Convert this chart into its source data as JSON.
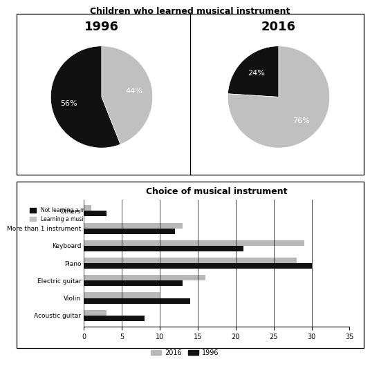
{
  "pie_title": "Children who learned musical instrument",
  "pie_1996": {
    "year": "1996",
    "not_learning": 56,
    "learning": 44
  },
  "pie_2016": {
    "year": "2016",
    "not_learning": 24,
    "learning": 76
  },
  "bar_title": "Choice of musical instrument",
  "categories": [
    "Acoustic guitar",
    "Violin",
    "Electric guitar",
    "Piano",
    "Keyboard",
    "More than 1 instrument",
    "Others"
  ],
  "values_1996": [
    8,
    14,
    13,
    30,
    21,
    12,
    3
  ],
  "values_2016": [
    3,
    10,
    16,
    28,
    29,
    13,
    1
  ],
  "color_1996": "#111111",
  "color_2016": "#b8b8b8",
  "pie_not_learning_color": "#111111",
  "pie_learning_color": "#c0c0c0",
  "bar_xlim": [
    0,
    35
  ],
  "bar_xticks": [
    0,
    5,
    10,
    15,
    20,
    25,
    30,
    35
  ]
}
